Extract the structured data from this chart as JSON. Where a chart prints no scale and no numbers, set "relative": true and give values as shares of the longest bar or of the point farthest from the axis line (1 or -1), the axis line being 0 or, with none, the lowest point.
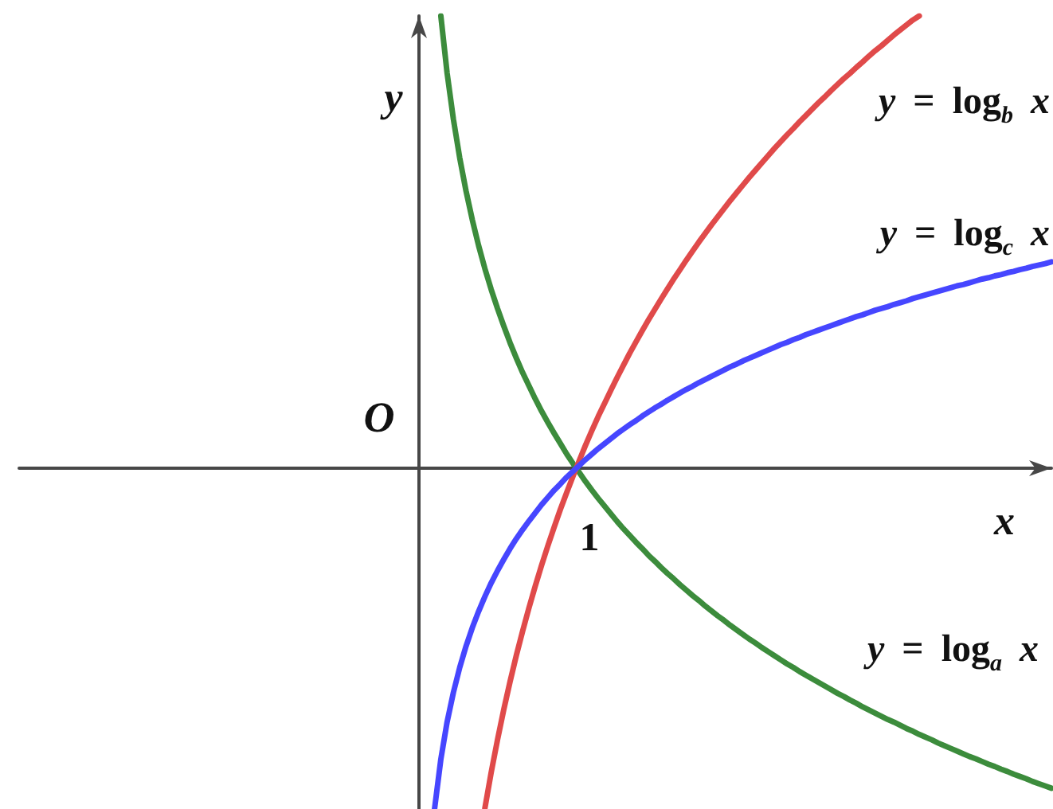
{
  "chart_data": {
    "type": "line",
    "relative": true,
    "xlabel": "x",
    "ylabel": "y",
    "marker": "none",
    "line_style": "solid",
    "annotations": [
      "O",
      "1"
    ],
    "categories": [
      null,
      null,
      null,
      null,
      null,
      null,
      null,
      null,
      null,
      null,
      null,
      null,
      null,
      null,
      null,
      null,
      null,
      null,
      null,
      null,
      null,
      null,
      null,
      null,
      null,
      null,
      null,
      null,
      null,
      null,
      null,
      null,
      null,
      null,
      null,
      null,
      null,
      null,
      null,
      null,
      null,
      null,
      null,
      null,
      null,
      null,
      null,
      null,
      null,
      null,
      null,
      null,
      null,
      null,
      null,
      null,
      null,
      null,
      null,
      null,
      null,
      null,
      null,
      null,
      null,
      null,
      null,
      null,
      null,
      null,
      null,
      null,
      null,
      null,
      null,
      null,
      null,
      null,
      null,
      null,
      null,
      null,
      null,
      null,
      null,
      null,
      null,
      null,
      null,
      null,
      null,
      null,
      null,
      null,
      null,
      null,
      null,
      null,
      null,
      null,
      null,
      null,
      null,
      null,
      null,
      null,
      null,
      null,
      null,
      null,
      null,
      null,
      null,
      null,
      null,
      null,
      null,
      null,
      null,
      null,
      null,
      null,
      null,
      null,
      null,
      null,
      null,
      null,
      null,
      null,
      null,
      null,
      null,
      null,
      null,
      null,
      null,
      null,
      null,
      null,
      null,
      null,
      null,
      null,
      null,
      null,
      null,
      null,
      null,
      null,
      null,
      null,
      null,
      null,
      null,
      null,
      null,
      null,
      null,
      null,
      null,
      null,
      null,
      null,
      null
    ],
    "series": [
      {
        "name": "y = log$_{a}$ x",
        "color": "#3c8c3c",
        "values": [
          null,
          null,
          null,
          null,
          null,
          null,
          null,
          null,
          null,
          null,
          null,
          null,
          null,
          null,
          null,
          null,
          null,
          null,
          null,
          null,
          null,
          null,
          null,
          null,
          null,
          null,
          null,
          null,
          null,
          null,
          null,
          null,
          null,
          null,
          null,
          null,
          null,
          null,
          null,
          null,
          null,
          null,
          null,
          null,
          null,
          null,
          null,
          null,
          null,
          null,
          null,
          null,
          null,
          null,
          null,
          null,
          null,
          null,
          null,
          null,
          null,
          null,
          null,
          null,
          null,
          null,
          null,
          1,
          0.873,
          0.771,
          0.686,
          0.613,
          0.549,
          0.492,
          0.441,
          0.395,
          0.353,
          0.314,
          0.277,
          0.243,
          0.211,
          0.182,
          0.153,
          0.126,
          0.101,
          0.077,
          0.054,
          0.031,
          0.01,
          -0.01,
          -0.03,
          -0.049,
          -0.067,
          -0.084,
          -0.101,
          -0.118,
          -0.134,
          -0.149,
          -0.164,
          -0.178,
          -0.193,
          -0.206,
          -0.22,
          -0.233,
          -0.245,
          -0.258,
          -0.27,
          -0.282,
          -0.293,
          -0.305,
          -0.316,
          -0.327,
          -0.337,
          -0.348,
          -0.358,
          -0.368,
          -0.378,
          -0.387,
          -0.397,
          -0.406,
          -0.415,
          -0.424,
          -0.433,
          -0.441,
          -0.45,
          -0.458,
          -0.466,
          -0.474,
          -0.482,
          -0.49,
          -0.498,
          -0.505,
          -0.513,
          -0.52,
          -0.528,
          -0.535,
          -0.542,
          -0.549,
          -0.556,
          -0.562,
          -0.569,
          -0.576,
          -0.582,
          -0.589,
          -0.595,
          -0.601,
          -0.608,
          -0.614,
          -0.62,
          -0.626,
          -0.632,
          -0.638,
          -0.643,
          -0.649,
          -0.655,
          -0.66,
          -0.666,
          -0.671,
          -0.677,
          -0.682,
          -0.687,
          -0.693,
          -0.698,
          -0.703,
          -0.708
        ]
      },
      {
        "name": "y = log$_{b}$ x",
        "color": "#e04a4a",
        "values": [
          null,
          null,
          null,
          null,
          null,
          null,
          null,
          null,
          null,
          null,
          null,
          null,
          null,
          null,
          null,
          null,
          null,
          null,
          null,
          null,
          null,
          null,
          null,
          null,
          null,
          null,
          null,
          null,
          null,
          null,
          null,
          null,
          null,
          null,
          null,
          null,
          null,
          null,
          null,
          null,
          null,
          null,
          null,
          null,
          null,
          null,
          null,
          null,
          null,
          null,
          null,
          null,
          null,
          null,
          null,
          null,
          null,
          null,
          null,
          null,
          null,
          null,
          null,
          null,
          null,
          null,
          null,
          null,
          null,
          null,
          null,
          null,
          null,
          null,
          -0.752,
          -0.673,
          -0.601,
          -0.534,
          -0.472,
          -0.414,
          -0.36,
          -0.309,
          -0.261,
          -0.215,
          -0.172,
          -0.131,
          -0.091,
          -0.054,
          -0.018,
          0.017,
          0.051,
          0.083,
          0.114,
          0.143,
          0.172,
          0.2,
          0.227,
          0.254,
          0.279,
          0.304,
          0.328,
          0.351,
          0.374,
          0.396,
          0.418,
          0.439,
          0.46,
          0.48,
          0.5,
          0.519,
          0.538,
          0.556,
          0.574,
          0.592,
          0.609,
          0.626,
          0.643,
          0.659,
          0.675,
          0.691,
          0.707,
          0.722,
          0.737,
          0.751,
          0.766,
          0.78,
          0.794,
          0.808,
          0.821,
          0.835,
          0.848,
          0.861,
          0.873,
          0.886,
          0.898,
          0.911,
          0.923,
          0.934,
          0.946,
          0.958,
          0.969,
          0.98,
          0.991,
          1,
          null,
          null,
          null,
          null,
          null,
          null,
          null,
          null,
          null,
          null,
          null,
          null,
          null,
          null,
          null,
          null,
          null,
          null,
          null,
          null,
          null
        ]
      },
      {
        "name": "y = log$_{c}$ x",
        "color": "#4646ff",
        "values": [
          null,
          null,
          null,
          null,
          null,
          null,
          null,
          null,
          null,
          null,
          null,
          null,
          null,
          null,
          null,
          null,
          null,
          null,
          null,
          null,
          null,
          null,
          null,
          null,
          null,
          null,
          null,
          null,
          null,
          null,
          null,
          null,
          null,
          null,
          null,
          null,
          null,
          null,
          null,
          null,
          null,
          null,
          null,
          null,
          null,
          null,
          null,
          null,
          null,
          null,
          null,
          null,
          null,
          null,
          null,
          null,
          null,
          null,
          null,
          null,
          null,
          null,
          null,
          null,
          null,
          null,
          -0.754,
          -0.644,
          -0.561,
          -0.496,
          -0.441,
          -0.394,
          -0.353,
          -0.317,
          -0.284,
          -0.254,
          -0.227,
          -0.202,
          -0.178,
          -0.156,
          -0.136,
          -0.117,
          -0.099,
          -0.081,
          -0.065,
          -0.049,
          -0.035,
          -0.02,
          -0.007,
          0.006,
          0.019,
          0.031,
          0.043,
          0.054,
          0.065,
          0.076,
          0.086,
          0.096,
          0.105,
          0.115,
          0.124,
          0.133,
          0.141,
          0.15,
          0.158,
          0.166,
          0.174,
          0.181,
          0.189,
          0.196,
          0.203,
          0.21,
          0.217,
          0.224,
          0.23,
          0.237,
          0.243,
          0.249,
          0.255,
          0.261,
          0.267,
          0.273,
          0.278,
          0.284,
          0.289,
          0.295,
          0.3,
          0.305,
          0.31,
          0.315,
          0.32,
          0.325,
          0.33,
          0.335,
          0.339,
          0.344,
          0.349,
          0.353,
          0.357,
          0.362,
          0.366,
          0.37,
          0.375,
          0.379,
          0.383,
          0.387,
          0.391,
          0.395,
          0.399,
          0.403,
          0.406,
          0.41,
          0.414,
          0.418,
          0.421,
          0.425,
          0.428,
          0.432,
          0.435,
          0.439,
          0.442,
          0.446,
          0.449,
          0.452,
          0.456
        ]
      }
    ]
  }
}
